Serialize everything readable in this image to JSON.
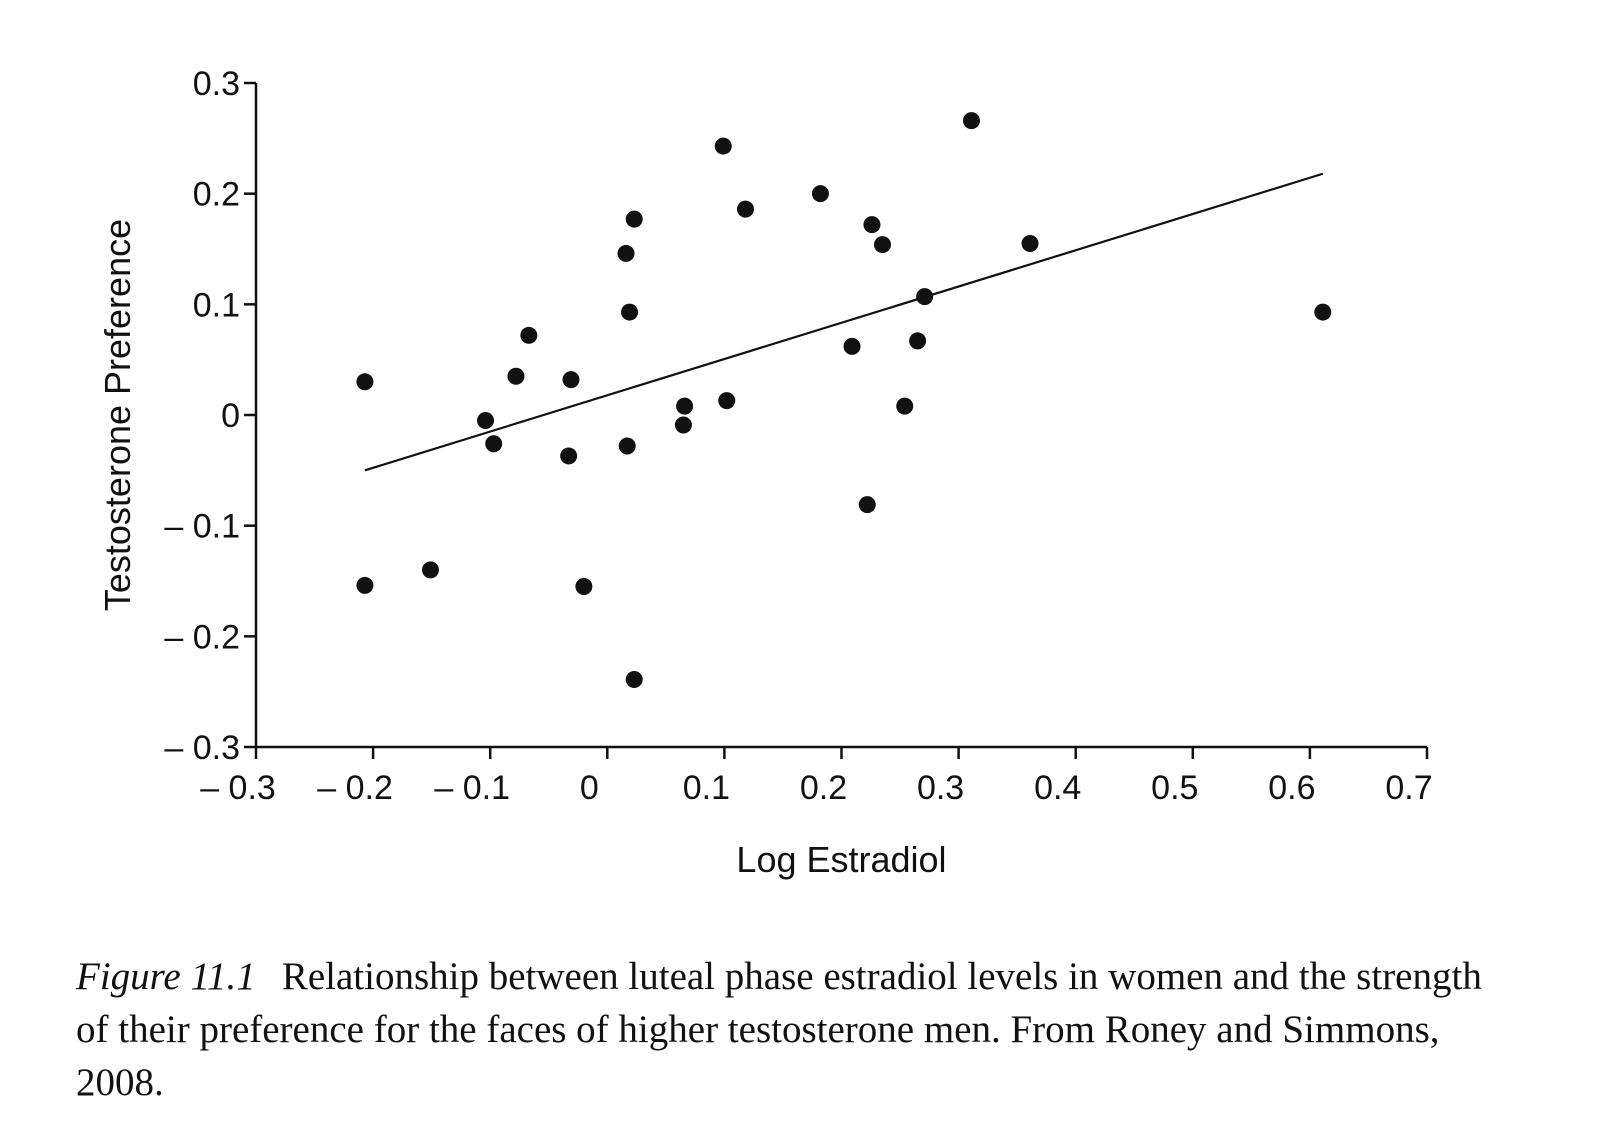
{
  "chart_data": {
    "type": "scatter",
    "xlabel": "Log Estradiol",
    "ylabel": "Testosterone Preference",
    "xlim": [
      -0.3,
      0.7
    ],
    "ylim": [
      -0.3,
      0.3
    ],
    "x_ticks": [
      -0.3,
      -0.2,
      -0.1,
      0,
      0.1,
      0.2,
      0.3,
      0.4,
      0.5,
      0.6,
      0.7
    ],
    "x_tick_labels": [
      "– 0.3",
      "– 0.2",
      "– 0.1",
      "0",
      "0.1",
      "0.2",
      "0.3",
      "0.4",
      "0.5",
      "0.6",
      "0.7"
    ],
    "y_ticks": [
      0.3,
      0.2,
      0.1,
      0,
      -0.1,
      -0.2,
      -0.3
    ],
    "y_tick_labels": [
      "0.3",
      "0.2",
      "0.1",
      "0",
      "– 0.1",
      "– 0.2",
      "– 0.3"
    ],
    "grid": false,
    "points": [
      {
        "x": -0.207,
        "y": 0.03
      },
      {
        "x": -0.207,
        "y": -0.154
      },
      {
        "x": -0.151,
        "y": -0.14
      },
      {
        "x": -0.104,
        "y": -0.005
      },
      {
        "x": -0.097,
        "y": -0.026
      },
      {
        "x": -0.078,
        "y": 0.035
      },
      {
        "x": -0.067,
        "y": 0.072
      },
      {
        "x": -0.031,
        "y": 0.032
      },
      {
        "x": -0.033,
        "y": -0.037
      },
      {
        "x": -0.02,
        "y": -0.155
      },
      {
        "x": 0.016,
        "y": 0.146
      },
      {
        "x": 0.019,
        "y": 0.093
      },
      {
        "x": 0.023,
        "y": 0.177
      },
      {
        "x": 0.017,
        "y": -0.028
      },
      {
        "x": 0.023,
        "y": -0.239
      },
      {
        "x": 0.066,
        "y": 0.008
      },
      {
        "x": 0.065,
        "y": -0.009
      },
      {
        "x": 0.099,
        "y": 0.243
      },
      {
        "x": 0.102,
        "y": 0.013
      },
      {
        "x": 0.118,
        "y": 0.186
      },
      {
        "x": 0.182,
        "y": 0.2
      },
      {
        "x": 0.209,
        "y": 0.062
      },
      {
        "x": 0.226,
        "y": 0.172
      },
      {
        "x": 0.235,
        "y": 0.154
      },
      {
        "x": 0.222,
        "y": -0.081
      },
      {
        "x": 0.254,
        "y": 0.008
      },
      {
        "x": 0.265,
        "y": 0.067
      },
      {
        "x": 0.271,
        "y": 0.107
      },
      {
        "x": 0.311,
        "y": 0.266
      },
      {
        "x": 0.361,
        "y": 0.155
      },
      {
        "x": 0.611,
        "y": 0.093
      }
    ],
    "trend_line": {
      "x": [
        -0.207,
        0.611
      ],
      "y": [
        -0.05,
        0.218
      ]
    }
  },
  "caption": {
    "label": "Figure 11.1",
    "text": "Relationship between luteal phase estradiol levels in women and the strength of their preference for the faces of higher testosterone men. From Roney and Simmons, 2008."
  }
}
